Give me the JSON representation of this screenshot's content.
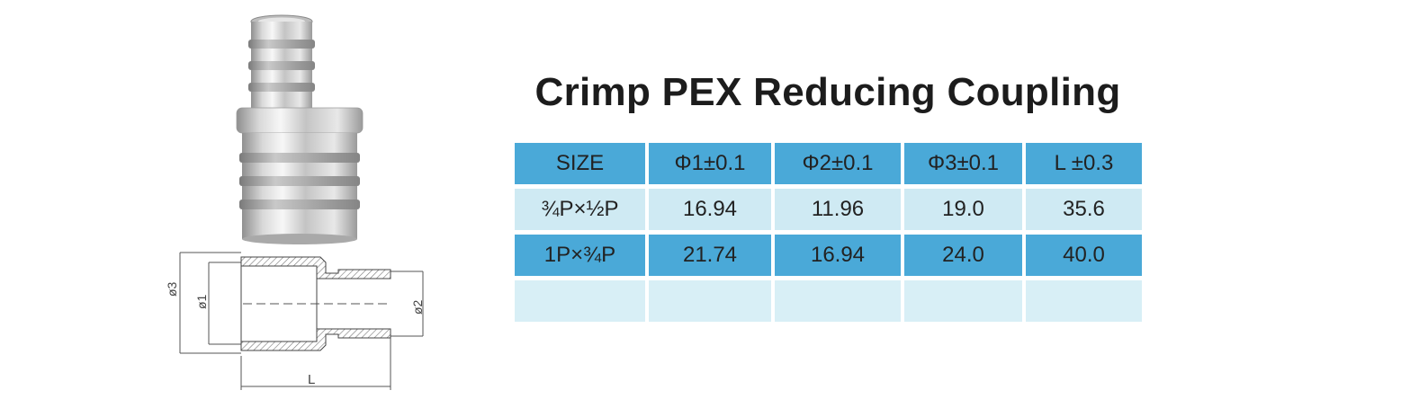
{
  "title": "Crimp PEX Reducing Coupling",
  "table": {
    "headers": [
      "SIZE",
      "Φ1±0.1",
      "Φ2±0.1",
      "Φ3±0.1",
      "L ±0.3"
    ],
    "rows": [
      [
        "¾P×½P",
        "16.94",
        "11.96",
        "19.0",
        "35.6"
      ],
      [
        "1P×¾P",
        "21.74",
        "16.94",
        "24.0",
        "40.0"
      ],
      [
        "",
        "",
        "",
        "",
        ""
      ]
    ]
  },
  "drawing_labels": {
    "phi3": "ø3",
    "phi1": "ø1",
    "phi2": "ø2",
    "length": "L"
  },
  "colors": {
    "header_row": "#4aa9d8",
    "light_row": "#cfeaf3",
    "title": "#1c1c1c"
  }
}
